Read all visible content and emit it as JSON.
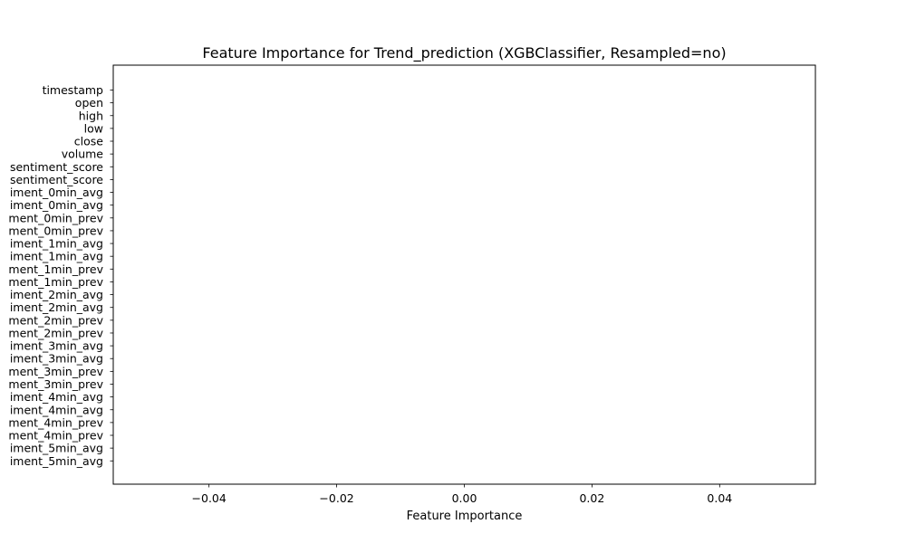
{
  "chart_data": {
    "type": "bar",
    "orientation": "horizontal",
    "title": "Feature Importance for Trend_prediction (XGBClassifier, Resampled=no)",
    "xlabel": "Feature Importance",
    "ylabel": "",
    "xlim": [
      -0.055,
      0.055
    ],
    "x_ticks": [
      -0.04,
      -0.02,
      0.0,
      0.02,
      0.04
    ],
    "x_tick_labels": [
      "−0.04",
      "−0.02",
      "0.00",
      "0.02",
      "0.04"
    ],
    "grid": false,
    "legend": "none",
    "categories": [
      "timestamp",
      "open",
      "high",
      "low",
      "close",
      "volume",
      "sentiment_score",
      "sentiment_score",
      "iment_0min_avg",
      "iment_0min_avg",
      "ment_0min_prev",
      "ment_0min_prev",
      "iment_1min_avg",
      "iment_1min_avg",
      "ment_1min_prev",
      "ment_1min_prev",
      "iment_2min_avg",
      "iment_2min_avg",
      "ment_2min_prev",
      "ment_2min_prev",
      "iment_3min_avg",
      "iment_3min_avg",
      "ment_3min_prev",
      "ment_3min_prev",
      "iment_4min_avg",
      "iment_4min_avg",
      "ment_4min_prev",
      "ment_4min_prev",
      "iment_5min_avg",
      "iment_5min_avg"
    ],
    "values": [
      0,
      0,
      0,
      0,
      0,
      0,
      0,
      0,
      0,
      0,
      0,
      0,
      0,
      0,
      0,
      0,
      0,
      0,
      0,
      0,
      0,
      0,
      0,
      0,
      0,
      0,
      0,
      0,
      0,
      0
    ],
    "colors": {
      "bar": "#1f77b4",
      "axes": "#000000",
      "background": "#ffffff"
    }
  }
}
